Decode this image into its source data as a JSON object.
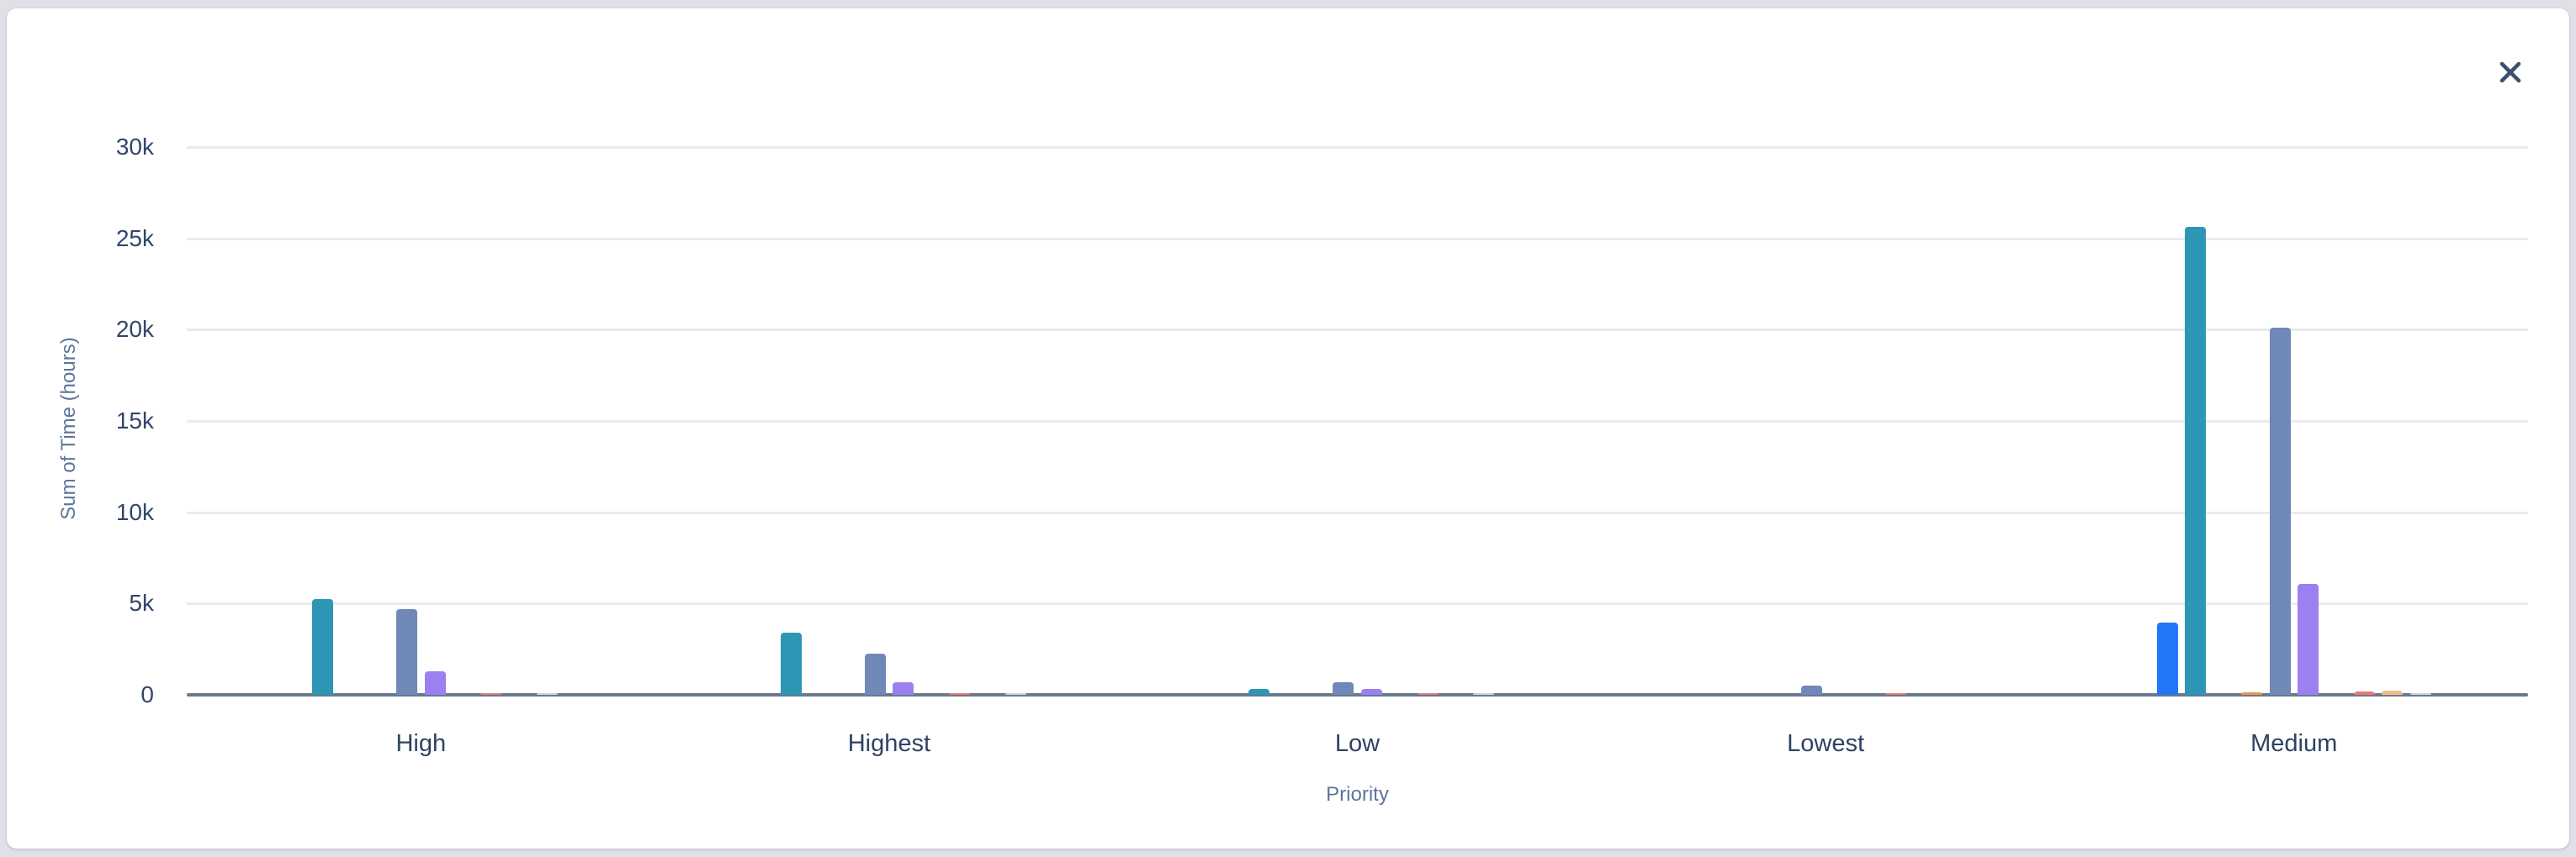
{
  "page": {
    "background_color": "#dfe1e6",
    "card_background_color": "#ffffff"
  },
  "modal": {
    "close_icon": "x-close",
    "close_icon_color": "#3b4e6e"
  },
  "chart_data": {
    "type": "bar",
    "title": "",
    "xlabel": "Priority",
    "ylabel": "Sum of Time (hours)",
    "categories": [
      "High",
      "Highest",
      "Low",
      "Lowest",
      "Medium"
    ],
    "y_ticks": [
      {
        "label": "0",
        "value": 0
      },
      {
        "label": "5k",
        "value": 5000
      },
      {
        "label": "10k",
        "value": 10000
      },
      {
        "label": "15k",
        "value": 15000
      },
      {
        "label": "20k",
        "value": 20000
      },
      {
        "label": "25k",
        "value": 25000
      },
      {
        "label": "30k",
        "value": 30000
      }
    ],
    "ylim": [
      0,
      32500
    ],
    "grid": true,
    "legend_position": "none",
    "axis_color": "#68798f",
    "gridline_color": "#e9ebf0",
    "series": [
      {
        "name": "series-1-blue",
        "color": "#2178f7",
        "values": [
          0,
          0,
          0,
          0,
          3950
        ]
      },
      {
        "name": "series-2-teal",
        "color": "#2e96b5",
        "values": [
          5250,
          3400,
          330,
          0,
          25600
        ]
      },
      {
        "name": "series-3-hidden",
        "color": null,
        "values": [
          0,
          0,
          0,
          0,
          0
        ]
      },
      {
        "name": "series-4-orange",
        "color": "#f0954d",
        "values": [
          0,
          0,
          0,
          0,
          150
        ]
      },
      {
        "name": "series-5-slate",
        "color": "#7088b8",
        "values": [
          4700,
          2250,
          690,
          500,
          20100
        ]
      },
      {
        "name": "series-6-purple",
        "color": "#9c7ff0",
        "values": [
          1280,
          690,
          300,
          0,
          6050
        ]
      },
      {
        "name": "series-7-hidden",
        "color": null,
        "values": [
          0,
          0,
          0,
          0,
          0
        ]
      },
      {
        "name": "series-8-salmon",
        "color": "#ec7a72",
        "values": [
          75,
          90,
          25,
          40,
          185
        ]
      },
      {
        "name": "series-9-tan",
        "color": "#f2bd84",
        "values": [
          0,
          0,
          0,
          0,
          215
        ]
      },
      {
        "name": "series-10-paleblue",
        "color": "#c9d6de",
        "values": [
          30,
          90,
          25,
          0,
          90
        ]
      }
    ]
  }
}
